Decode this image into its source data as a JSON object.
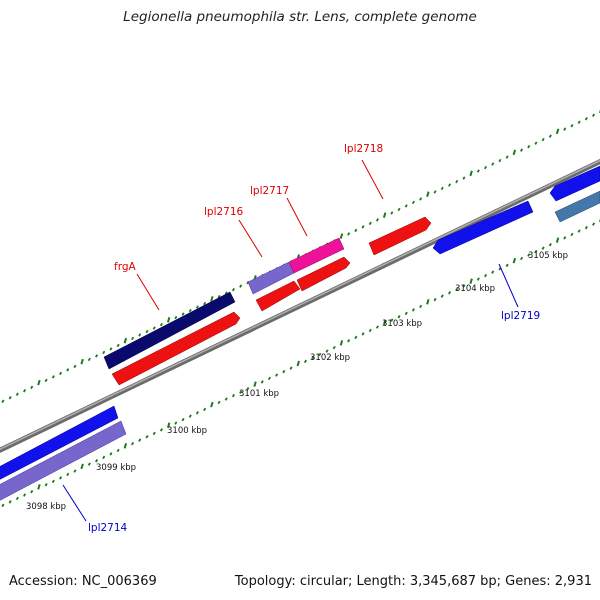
{
  "title": "Legionella pneumophila str. Lens, complete genome",
  "footer": {
    "accession": "Accession: NC_006369",
    "summary": "Topology: circular; Length: 3,345,687 bp; Genes: 2,931"
  },
  "scale_labels": [
    "3098 kbp",
    "3099 kbp",
    "3100 kbp",
    "3101 kbp",
    "3102 kbp",
    "3103 kbp",
    "3104 kbp",
    "3105 kbp"
  ],
  "gene_labels": [
    {
      "id": "frgA",
      "text": "frgA",
      "strand": "forward"
    },
    {
      "id": "lpl2716",
      "text": "lpl2716",
      "strand": "forward"
    },
    {
      "id": "lpl2717",
      "text": "lpl2717",
      "strand": "forward"
    },
    {
      "id": "lpl2718",
      "text": "lpl2718",
      "strand": "forward"
    },
    {
      "id": "lpl2719",
      "text": "lpl2719",
      "strand": "reverse"
    },
    {
      "id": "lpl2714",
      "text": "lpl2714",
      "strand": "reverse"
    }
  ],
  "colors": {
    "forward_label": "#dd0000",
    "reverse_label": "#0000cc",
    "backbone": "#8a8a8a",
    "tick": "#1a7a1a",
    "cds_red": "#ee1111",
    "cds_blue": "#1111ee",
    "cds_navy": "#0a0a6e",
    "cds_pink": "#ee1199",
    "cds_lavender": "#7766cc",
    "cds_steel": "#4477aa"
  }
}
